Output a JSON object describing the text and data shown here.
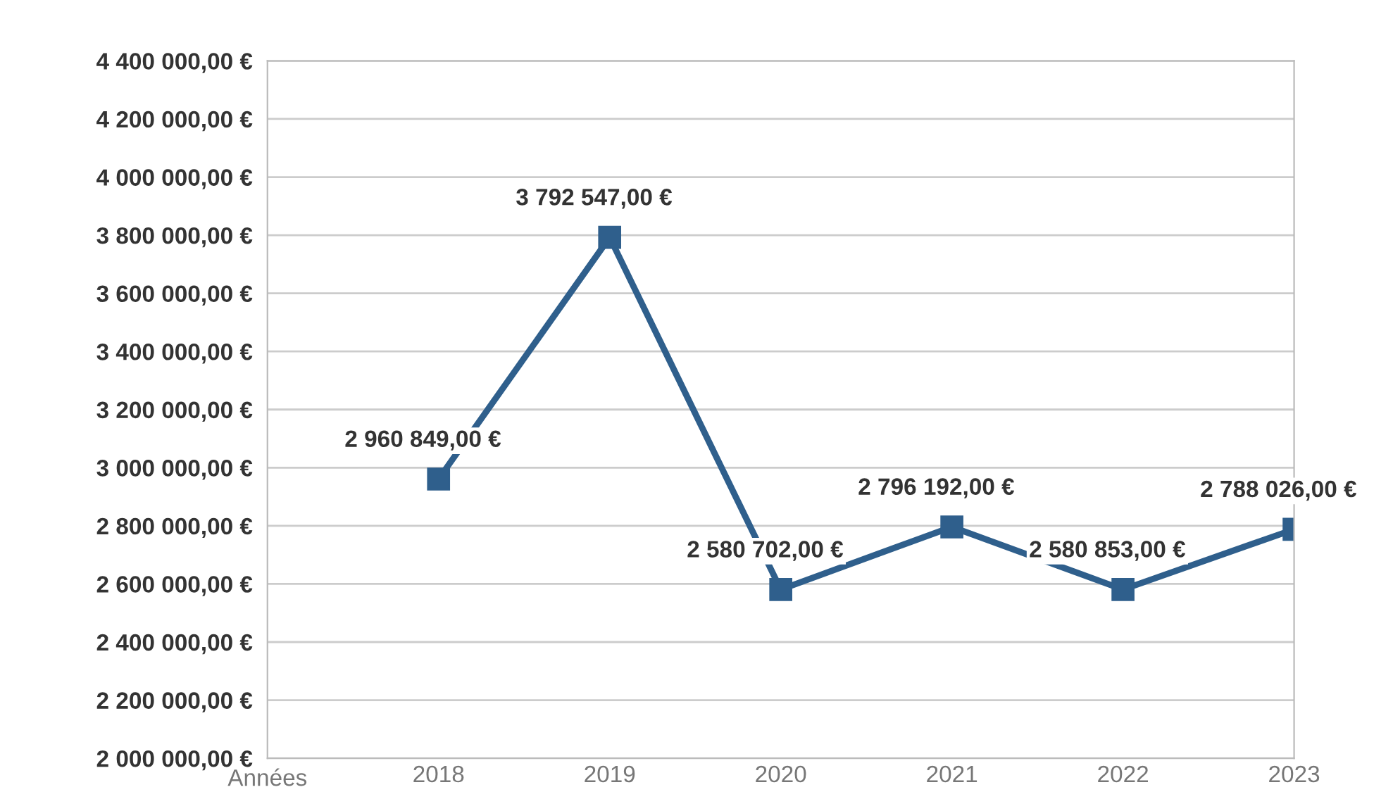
{
  "chart_data": {
    "type": "line",
    "xlabel": "Années",
    "categories": [
      "2018",
      "2019",
      "2020",
      "2021",
      "2022",
      "2023"
    ],
    "series": [
      {
        "color": "#2f5f8c",
        "values": [
          2960849,
          3792547,
          2580702,
          2796192,
          2580853,
          2788026
        ]
      }
    ],
    "value_labels": [
      "2 960 849,00 €",
      "3 792 547,00 €",
      "2 580 702,00 €",
      "2 796 192,00 €",
      "2 580 853,00 €",
      "2 788 026,00 €"
    ],
    "ylim": [
      2000000,
      4400000
    ],
    "yticks": [
      {
        "value": 2000000,
        "label": "2 000 000,00 €"
      },
      {
        "value": 2200000,
        "label": "2 200 000,00 €"
      },
      {
        "value": 2400000,
        "label": "2 400 000,00 €"
      },
      {
        "value": 2600000,
        "label": "2 600 000,00 €"
      },
      {
        "value": 2800000,
        "label": "2 800 000,00 €"
      },
      {
        "value": 3000000,
        "label": "3 000 000,00 €"
      },
      {
        "value": 3200000,
        "label": "3 200 000,00 €"
      },
      {
        "value": 3400000,
        "label": "3 400 000,00 €"
      },
      {
        "value": 3600000,
        "label": "3 600 000,00 €"
      },
      {
        "value": 3800000,
        "label": "3 800 000,00 €"
      },
      {
        "value": 4000000,
        "label": "4 000 000,00 €"
      },
      {
        "value": 4200000,
        "label": "4 200 000,00 €"
      },
      {
        "value": 4400000,
        "label": "4 400 000,00 €"
      }
    ],
    "grid": "y",
    "marker": "square",
    "line_style": "solid",
    "legend": false
  }
}
